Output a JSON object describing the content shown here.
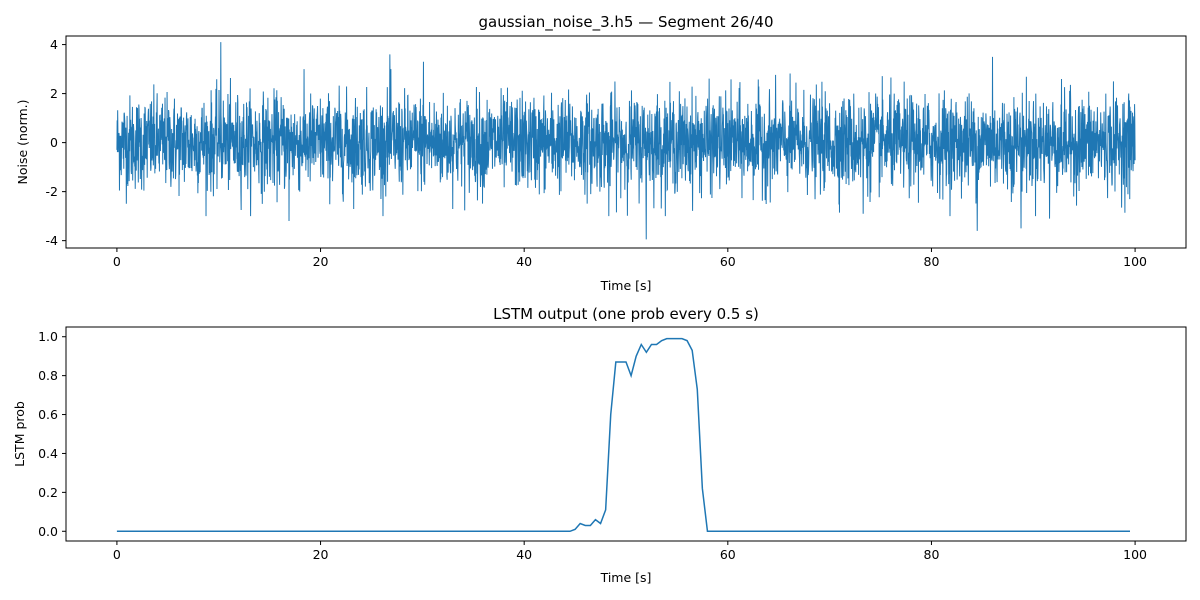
{
  "chart_data": [
    {
      "type": "line",
      "title": "gaussian_noise_3.h5 — Segment 26/40",
      "xlabel": "Time [s]",
      "ylabel": "Noise (norm.)",
      "xlim": [
        -5,
        105
      ],
      "ylim": [
        -4.3,
        4.35
      ],
      "xticks": [
        0,
        20,
        40,
        60,
        80,
        100
      ],
      "yticks": [
        -4,
        -2,
        0,
        2,
        4
      ],
      "color": "#1f77b4",
      "grid": false,
      "series": [
        {
          "name": "",
          "x_range": [
            0,
            100
          ],
          "distribution": "gaussian",
          "mean": 0,
          "std": 0.95,
          "peaks": [
            [
              10.2,
              4.1
            ],
            [
              26.8,
              3.6
            ],
            [
              30.1,
              3.3
            ],
            [
              86.0,
              3.5
            ],
            [
              52.0,
              -3.95
            ],
            [
              84.5,
              -3.6
            ],
            [
              88.8,
              -3.5
            ],
            [
              16.9,
              -3.2
            ],
            [
              48.3,
              -3.0
            ],
            [
              73.3,
              -2.9
            ],
            [
              91.6,
              -3.1
            ]
          ]
        }
      ]
    },
    {
      "type": "line",
      "title": "LSTM output (one prob every 0.5 s)",
      "xlabel": "Time [s]",
      "ylabel": "LSTM prob",
      "xlim": [
        -5,
        105
      ],
      "ylim": [
        -0.05,
        1.05
      ],
      "xticks": [
        0,
        20,
        40,
        60,
        80,
        100
      ],
      "yticks": [
        "0.0",
        "0.2",
        "0.4",
        "0.6",
        "0.8",
        "1.0"
      ],
      "color": "#1f77b4",
      "grid": false,
      "series": [
        {
          "name": "",
          "x": [
            0,
            44.5,
            45,
            45.5,
            46,
            46.5,
            47,
            47.5,
            48,
            48.5,
            49,
            49.5,
            50,
            50.5,
            51,
            51.5,
            52,
            52.5,
            53,
            53.5,
            54,
            54.5,
            55,
            55.5,
            56,
            56.5,
            57,
            57.5,
            58,
            58.5,
            99.5
          ],
          "y": [
            0.0,
            0.0,
            0.01,
            0.04,
            0.03,
            0.03,
            0.06,
            0.04,
            0.11,
            0.6,
            0.87,
            0.87,
            0.87,
            0.8,
            0.9,
            0.96,
            0.92,
            0.96,
            0.96,
            0.98,
            0.99,
            0.99,
            0.99,
            0.99,
            0.98,
            0.93,
            0.73,
            0.22,
            0.0,
            0.0,
            0.0
          ]
        }
      ]
    }
  ]
}
